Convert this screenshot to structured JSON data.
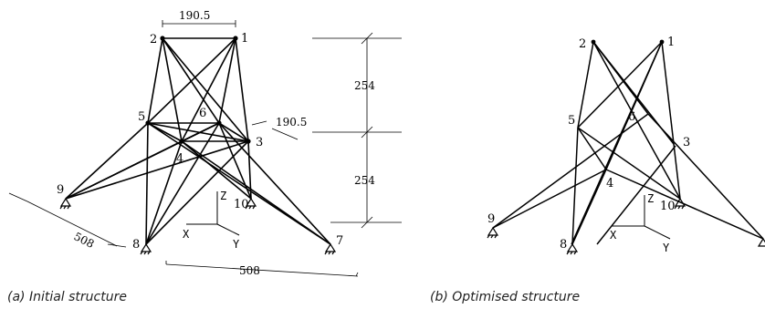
{
  "panel_a": {
    "caption": "(a) Initial structure",
    "node_labels": [
      "1",
      "2",
      "3",
      "4",
      "5",
      "6",
      "7",
      "8",
      "9",
      "10"
    ],
    "dimensions": [
      "190.5",
      "254",
      "190.5",
      "254",
      "508",
      "508"
    ],
    "axis_labels": [
      "Z",
      "X",
      "Y"
    ]
  },
  "panel_b": {
    "caption": "(b) Optimised structure",
    "node_labels": [
      "1",
      "2",
      "3",
      "4",
      "5",
      "6",
      "8",
      "9",
      "10"
    ],
    "axis_labels": [
      "Z",
      "X",
      "Y"
    ]
  }
}
